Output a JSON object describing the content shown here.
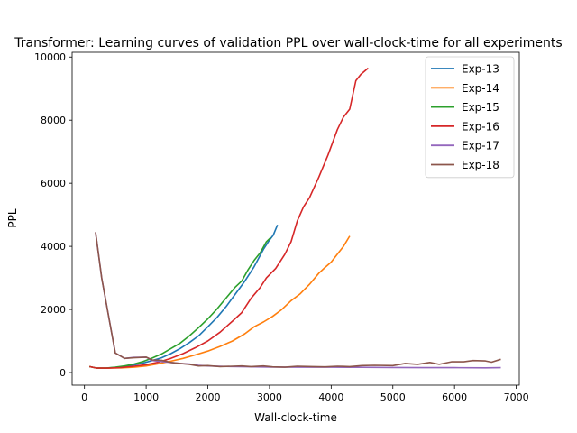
{
  "chart_data": {
    "type": "line",
    "title": "Transformer: Learning curves of validation PPL over wall-clock-time for all experiments",
    "xlabel": "Wall-clock-time",
    "ylabel": "PPL",
    "xlim": [
      -200,
      7050
    ],
    "ylim": [
      -400,
      10150
    ],
    "xticks": [
      0,
      1000,
      2000,
      3000,
      4000,
      5000,
      6000,
      7000
    ],
    "yticks": [
      0,
      2000,
      4000,
      6000,
      8000,
      10000
    ],
    "grid": false,
    "legend_position": "top-right",
    "series": [
      {
        "name": "Exp-13",
        "color": "#1f77b4",
        "points": [
          [
            80,
            190
          ],
          [
            200,
            140
          ],
          [
            350,
            140
          ],
          [
            500,
            160
          ],
          [
            650,
            190
          ],
          [
            800,
            240
          ],
          [
            950,
            300
          ],
          [
            1100,
            380
          ],
          [
            1250,
            470
          ],
          [
            1400,
            600
          ],
          [
            1550,
            760
          ],
          [
            1700,
            950
          ],
          [
            1850,
            1160
          ],
          [
            2000,
            1450
          ],
          [
            2150,
            1750
          ],
          [
            2300,
            2100
          ],
          [
            2450,
            2500
          ],
          [
            2600,
            2900
          ],
          [
            2750,
            3350
          ],
          [
            2900,
            3900
          ],
          [
            3000,
            4200
          ],
          [
            3060,
            4350
          ],
          [
            3130,
            4680
          ]
        ]
      },
      {
        "name": "Exp-14",
        "color": "#ff7f0e",
        "points": [
          [
            80,
            190
          ],
          [
            200,
            140
          ],
          [
            400,
            140
          ],
          [
            600,
            150
          ],
          [
            800,
            170
          ],
          [
            1000,
            210
          ],
          [
            1200,
            280
          ],
          [
            1400,
            360
          ],
          [
            1600,
            450
          ],
          [
            1800,
            560
          ],
          [
            2000,
            680
          ],
          [
            2200,
            830
          ],
          [
            2400,
            1000
          ],
          [
            2600,
            1230
          ],
          [
            2750,
            1450
          ],
          [
            2900,
            1600
          ],
          [
            3050,
            1780
          ],
          [
            3200,
            2000
          ],
          [
            3350,
            2280
          ],
          [
            3500,
            2500
          ],
          [
            3650,
            2800
          ],
          [
            3800,
            3150
          ],
          [
            3900,
            3330
          ],
          [
            4000,
            3500
          ],
          [
            4100,
            3750
          ],
          [
            4200,
            4000
          ],
          [
            4300,
            4330
          ]
        ]
      },
      {
        "name": "Exp-15",
        "color": "#2ca02c",
        "points": [
          [
            80,
            190
          ],
          [
            200,
            140
          ],
          [
            350,
            140
          ],
          [
            500,
            170
          ],
          [
            650,
            210
          ],
          [
            800,
            270
          ],
          [
            950,
            350
          ],
          [
            1100,
            460
          ],
          [
            1250,
            590
          ],
          [
            1400,
            760
          ],
          [
            1550,
            930
          ],
          [
            1700,
            1160
          ],
          [
            1850,
            1420
          ],
          [
            2000,
            1700
          ],
          [
            2150,
            2020
          ],
          [
            2300,
            2370
          ],
          [
            2450,
            2720
          ],
          [
            2550,
            2900
          ],
          [
            2650,
            3250
          ],
          [
            2750,
            3550
          ],
          [
            2850,
            3800
          ],
          [
            2950,
            4150
          ],
          [
            3020,
            4280
          ]
        ]
      },
      {
        "name": "Exp-16",
        "color": "#d62728",
        "points": [
          [
            80,
            190
          ],
          [
            200,
            140
          ],
          [
            400,
            140
          ],
          [
            600,
            160
          ],
          [
            800,
            200
          ],
          [
            1000,
            250
          ],
          [
            1200,
            330
          ],
          [
            1400,
            450
          ],
          [
            1600,
            600
          ],
          [
            1800,
            790
          ],
          [
            2000,
            1000
          ],
          [
            2200,
            1280
          ],
          [
            2400,
            1630
          ],
          [
            2550,
            1900
          ],
          [
            2700,
            2350
          ],
          [
            2850,
            2700
          ],
          [
            2950,
            3000
          ],
          [
            3100,
            3300
          ],
          [
            3250,
            3750
          ],
          [
            3350,
            4150
          ],
          [
            3450,
            4800
          ],
          [
            3550,
            5250
          ],
          [
            3650,
            5550
          ],
          [
            3800,
            6200
          ],
          [
            3950,
            6900
          ],
          [
            4100,
            7700
          ],
          [
            4200,
            8100
          ],
          [
            4300,
            8350
          ],
          [
            4400,
            9250
          ],
          [
            4480,
            9450
          ],
          [
            4600,
            9650
          ]
        ]
      },
      {
        "name": "Exp-17",
        "color": "#9467bd",
        "points": [
          [
            180,
            4450
          ],
          [
            280,
            3000
          ],
          [
            400,
            1700
          ],
          [
            500,
            620
          ],
          [
            650,
            450
          ],
          [
            800,
            480
          ],
          [
            1000,
            490
          ],
          [
            1100,
            380
          ],
          [
            1250,
            350
          ],
          [
            1400,
            320
          ],
          [
            1550,
            290
          ],
          [
            1700,
            270
          ],
          [
            1850,
            230
          ],
          [
            2000,
            210
          ],
          [
            2250,
            195
          ],
          [
            2500,
            190
          ],
          [
            2750,
            180
          ],
          [
            3000,
            175
          ],
          [
            3500,
            170
          ],
          [
            4000,
            170
          ],
          [
            4500,
            165
          ],
          [
            5000,
            160
          ],
          [
            5500,
            155
          ],
          [
            6000,
            155
          ],
          [
            6500,
            150
          ],
          [
            6750,
            155
          ]
        ]
      },
      {
        "name": "Exp-18",
        "color": "#8c564b",
        "points": [
          [
            180,
            4450
          ],
          [
            280,
            3000
          ],
          [
            400,
            1700
          ],
          [
            500,
            620
          ],
          [
            650,
            450
          ],
          [
            800,
            470
          ],
          [
            1000,
            490
          ],
          [
            1100,
            400
          ],
          [
            1250,
            390
          ],
          [
            1400,
            320
          ],
          [
            1550,
            290
          ],
          [
            1700,
            260
          ],
          [
            1850,
            210
          ],
          [
            2000,
            220
          ],
          [
            2200,
            190
          ],
          [
            2400,
            200
          ],
          [
            2550,
            210
          ],
          [
            2700,
            190
          ],
          [
            2900,
            210
          ],
          [
            3050,
            180
          ],
          [
            3250,
            170
          ],
          [
            3450,
            200
          ],
          [
            3700,
            190
          ],
          [
            3900,
            180
          ],
          [
            4100,
            200
          ],
          [
            4300,
            190
          ],
          [
            4500,
            220
          ],
          [
            4700,
            230
          ],
          [
            5000,
            220
          ],
          [
            5200,
            290
          ],
          [
            5400,
            260
          ],
          [
            5600,
            320
          ],
          [
            5750,
            260
          ],
          [
            5950,
            340
          ],
          [
            6150,
            340
          ],
          [
            6300,
            380
          ],
          [
            6500,
            370
          ],
          [
            6600,
            330
          ],
          [
            6750,
            420
          ]
        ]
      }
    ]
  }
}
